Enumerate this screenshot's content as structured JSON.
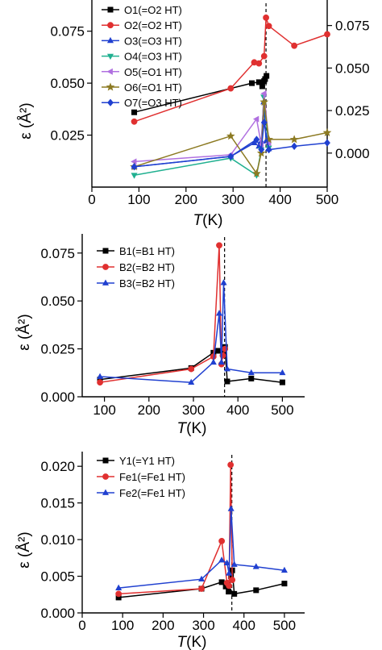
{
  "chart_data": [
    {
      "type": "line",
      "panel": "top",
      "xlabel": "T(K)",
      "ylabel": "ε (Å²)",
      "xlim": [
        0,
        500
      ],
      "ylim": [
        0,
        0.09
      ],
      "left_ticks": [
        0.025,
        0.05,
        0.075
      ],
      "left_tick_labels": [
        "0.025",
        "0.050",
        "0.075"
      ],
      "right_axis": {
        "ylim": [
          -0.02,
          0.09
        ],
        "ticks": [
          0.0,
          0.025,
          0.05,
          0.075
        ],
        "tick_labels": [
          "0.000",
          "0.025",
          "0.050",
          "0.075"
        ]
      },
      "x_ticks": [
        0,
        100,
        200,
        300,
        400,
        500
      ],
      "x_tick_labels": [
        "0",
        "100",
        "200",
        "300",
        "400",
        "500"
      ],
      "dashed_vline_x": 370,
      "legend_position": "top-left",
      "series": [
        {
          "name": "O1(=O2 HT)",
          "color": "#000000",
          "marker": "square",
          "axis": "left",
          "x": [
            90,
            340,
            355,
            362,
            366,
            368,
            371
          ],
          "y": [
            0.036,
            0.05,
            0.0505,
            0.0485,
            0.051,
            0.052,
            0.0535
          ]
        },
        {
          "name": "O2(=O2 HT)",
          "color": "#e03030",
          "marker": "circle",
          "axis": "left",
          "x": [
            90,
            295,
            345,
            355,
            366,
            370,
            376,
            430,
            500
          ],
          "y": [
            0.0315,
            0.0475,
            0.06,
            0.0595,
            0.063,
            0.0815,
            0.0775,
            0.068,
            0.0735
          ]
        },
        {
          "name": "O3(=O3 HT)",
          "color": "#2040d0",
          "marker": "triangle-up",
          "axis": "right",
          "x": [
            90,
            295,
            345,
            355,
            360,
            365,
            370,
            376
          ],
          "y": [
            -0.008,
            -0.002,
            0.006,
            0.004,
            0.007,
            0.03,
            0.007,
            0.0025
          ]
        },
        {
          "name": "O4(=O3 HT)",
          "color": "#20b090",
          "marker": "triangle-down",
          "axis": "right",
          "x": [
            90,
            295,
            350,
            360,
            365,
            376
          ],
          "y": [
            -0.013,
            -0.003,
            -0.013,
            0.002,
            0.033,
            0.003
          ]
        },
        {
          "name": "O5(=O1 HT)",
          "color": "#b070e0",
          "marker": "triangle-left",
          "axis": "right",
          "x": [
            90,
            295,
            350,
            360,
            366,
            376
          ],
          "y": [
            -0.005,
            -0.001,
            0.02,
            0.005,
            0.035,
            0.006
          ]
        },
        {
          "name": "O6(=O1 HT)",
          "color": "#8c7a22",
          "marker": "star",
          "axis": "right",
          "x": [
            90,
            295,
            350,
            360,
            366,
            376,
            430,
            500
          ],
          "y": [
            -0.008,
            0.01,
            -0.012,
            0.0,
            0.03,
            0.008,
            0.008,
            0.012
          ]
        },
        {
          "name": "O7(=O3 HT)",
          "color": "#2040d0",
          "marker": "diamond",
          "axis": "right",
          "x": [
            90,
            295,
            350,
            360,
            366,
            376,
            430,
            500
          ],
          "y": [
            -0.008,
            -0.002,
            0.008,
            0.002,
            0.018,
            0.002,
            0.004,
            0.006
          ]
        }
      ]
    },
    {
      "type": "line",
      "panel": "middle",
      "xlabel": "T(K)",
      "ylabel": "ε (Å²)",
      "xlim": [
        50,
        550
      ],
      "ylim": [
        0,
        0.085
      ],
      "y_ticks": [
        0.0,
        0.025,
        0.05,
        0.075
      ],
      "y_tick_labels": [
        "0.000",
        "0.025",
        "0.050",
        "0.075"
      ],
      "x_ticks": [
        100,
        200,
        300,
        400,
        500
      ],
      "x_tick_labels": [
        "100",
        "200",
        "300",
        "400",
        "500"
      ],
      "dashed_vline_x": 370,
      "legend_position": "top-left",
      "series": [
        {
          "name": "B1(=B1 HT)",
          "color": "#000000",
          "marker": "square",
          "x": [
            90,
            295,
            345,
            355,
            362,
            368,
            371,
            376,
            430,
            500
          ],
          "y": [
            0.009,
            0.015,
            0.023,
            0.024,
            0.024,
            0.023,
            0.026,
            0.008,
            0.0095,
            0.0075
          ]
        },
        {
          "name": "B2(=B2 HT)",
          "color": "#e03030",
          "marker": "circle",
          "x": [
            90,
            295,
            345,
            358,
            363,
            366,
            371
          ],
          "y": [
            0.0075,
            0.0145,
            0.021,
            0.079,
            0.017,
            0.0215,
            0.025
          ]
        },
        {
          "name": "B3(=B2 HT)",
          "color": "#2040d0",
          "marker": "triangle-up",
          "x": [
            90,
            295,
            345,
            358,
            363,
            368,
            376,
            430,
            500
          ],
          "y": [
            0.0105,
            0.0075,
            0.018,
            0.0435,
            0.018,
            0.0595,
            0.0145,
            0.0125,
            0.0125
          ]
        }
      ]
    },
    {
      "type": "line",
      "panel": "bottom",
      "xlabel": "T(K)",
      "ylabel": "ε (Å²)",
      "xlim": [
        0,
        550
      ],
      "ylim": [
        0,
        0.022
      ],
      "y_ticks": [
        0.0,
        0.005,
        0.01,
        0.015,
        0.02
      ],
      "y_tick_labels": [
        "0.000",
        "0.005",
        "0.010",
        "0.015",
        "0.020"
      ],
      "x_ticks": [
        0,
        100,
        200,
        300,
        400,
        500
      ],
      "x_tick_labels": [
        "0",
        "100",
        "200",
        "300",
        "400",
        "500"
      ],
      "dashed_vline_x": 370,
      "legend_position": "top-left",
      "series": [
        {
          "name": "Y1(=Y1 HT)",
          "color": "#000000",
          "marker": "square",
          "x": [
            90,
            295,
            345,
            355,
            362,
            368,
            371,
            376,
            430,
            500
          ],
          "y": [
            0.0021,
            0.0033,
            0.0042,
            0.0036,
            0.0029,
            0.005,
            0.0058,
            0.0026,
            0.0031,
            0.004
          ]
        },
        {
          "name": "Fe1(=Fe1 HT)",
          "color": "#e03030",
          "marker": "circle",
          "x": [
            90,
            295,
            345,
            358,
            363,
            367,
            371
          ],
          "y": [
            0.0026,
            0.0033,
            0.0098,
            0.0041,
            0.0037,
            0.0202,
            0.0045
          ]
        },
        {
          "name": "Fe2(=Fe1 HT)",
          "color": "#2040d0",
          "marker": "triangle-up",
          "x": [
            90,
            295,
            345,
            358,
            363,
            368,
            376,
            430,
            500
          ],
          "y": [
            0.0034,
            0.0046,
            0.0072,
            0.0068,
            0.0054,
            0.0142,
            0.0066,
            0.0063,
            0.0058
          ]
        }
      ]
    }
  ]
}
